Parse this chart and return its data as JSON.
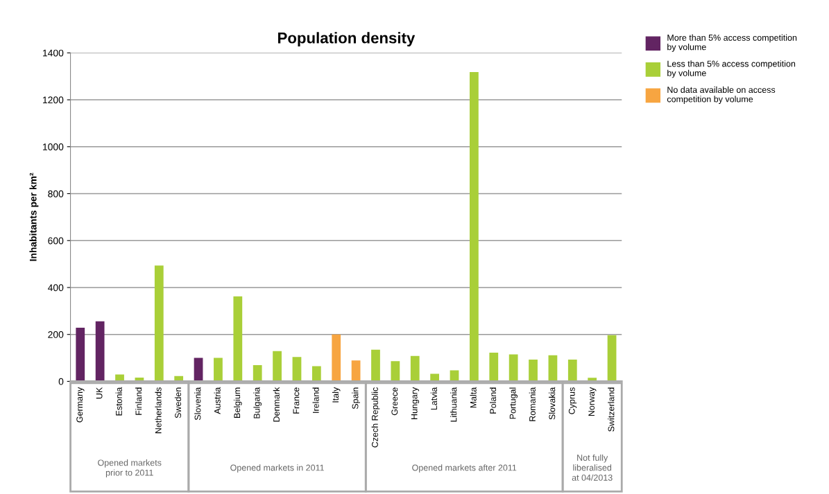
{
  "chart_data": {
    "type": "bar",
    "title": "Population density",
    "ylabel": "Inhabitants per km²",
    "categories": [
      "Germany",
      "UK",
      "Estonia",
      "Finland",
      "Netherlands",
      "Sweden",
      "Slovenia",
      "Austria",
      "Belgium",
      "Bulgaria",
      "Denmark",
      "France",
      "Ireland",
      "Italy",
      "Spain",
      "Czech Republic",
      "Greece",
      "Hungary",
      "Latvia",
      "Lithuania",
      "Malta",
      "Poland",
      "Portugal",
      "Romania",
      "Slovakia",
      "Cyprus",
      "Norway",
      "Switzerland"
    ],
    "stacked": true,
    "series": [
      {
        "name": "More than 5% access competition by volume",
        "color": "#622462",
        "values": [
          229,
          256,
          null,
          null,
          null,
          null,
          100,
          null,
          null,
          null,
          null,
          null,
          null,
          null,
          null,
          null,
          null,
          null,
          null,
          null,
          null,
          null,
          null,
          null,
          null,
          null,
          null,
          null
        ]
      },
      {
        "name": "Less than 5% access competition by volume",
        "color": "#a9cf38",
        "values": [
          null,
          null,
          29,
          16,
          494,
          23,
          null,
          100,
          362,
          69,
          129,
          104,
          65,
          null,
          null,
          135,
          86,
          108,
          32,
          47,
          1318,
          122,
          115,
          93,
          111,
          93,
          15,
          197
        ]
      },
      {
        "name": "No data available on access competition by volume",
        "color": "#f7a541",
        "values": [
          null,
          null,
          null,
          null,
          null,
          null,
          null,
          null,
          null,
          null,
          null,
          null,
          null,
          200,
          89,
          null,
          null,
          null,
          null,
          null,
          null,
          null,
          null,
          null,
          null,
          null,
          null,
          null
        ]
      }
    ],
    "ylim": [
      0,
      1400
    ],
    "yticks": [
      0,
      200,
      400,
      600,
      800,
      1000,
      1200,
      1400
    ],
    "grid": "y",
    "legend": "top right",
    "annotations": [
      "Opened markets\nprior to 2011",
      "Opened markets in 2011",
      "Opened markets after 2011",
      "Not fully\nliberalised\nat 04/2013"
    ]
  }
}
